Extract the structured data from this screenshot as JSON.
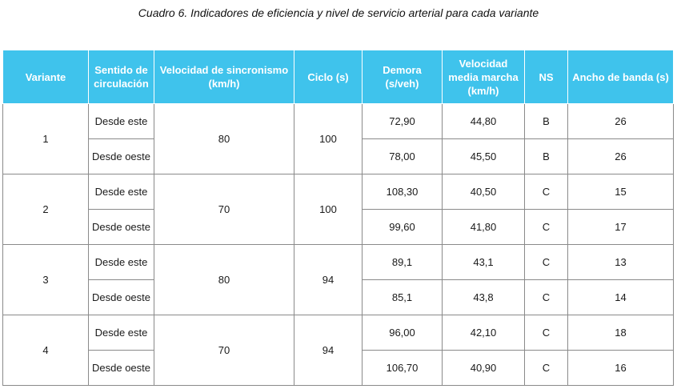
{
  "caption": "Cuadro 6. Indicadores de eficiencia y nivel de servicio arterial para cada variante",
  "colors": {
    "header_bg": "#3fc3ec",
    "header_text": "#ffffff",
    "border": "#8a8a8a"
  },
  "headers": {
    "variante": "Variante",
    "sentido": "Sentido de circulación",
    "velocidad_sincronismo": "Velocidad de sincronismo (km/h)",
    "ciclo": "Ciclo (s)",
    "demora": "Demora (s/veh)",
    "velocidad_media": "Velocidad media marcha (km/h)",
    "ns": "NS",
    "ancho_banda": "Ancho de banda (s)"
  },
  "rows": [
    {
      "variante": "1",
      "velocidad": "80",
      "ciclo": "100",
      "directions": [
        {
          "sentido": "Desde este",
          "demora": "72,90",
          "velocidad_media": "44,80",
          "ns": "B",
          "ancho_banda": "26"
        },
        {
          "sentido": "Desde oeste",
          "demora": "78,00",
          "velocidad_media": "45,50",
          "ns": "B",
          "ancho_banda": "26"
        }
      ]
    },
    {
      "variante": "2",
      "velocidad": "70",
      "ciclo": "100",
      "directions": [
        {
          "sentido": "Desde este",
          "demora": "108,30",
          "velocidad_media": "40,50",
          "ns": "C",
          "ancho_banda": "15"
        },
        {
          "sentido": "Desde oeste",
          "demora": "99,60",
          "velocidad_media": "41,80",
          "ns": "C",
          "ancho_banda": "17"
        }
      ]
    },
    {
      "variante": "3",
      "velocidad": "80",
      "ciclo": "94",
      "directions": [
        {
          "sentido": "Desde este",
          "demora": "89,1",
          "velocidad_media": "43,1",
          "ns": "C",
          "ancho_banda": "13"
        },
        {
          "sentido": "Desde oeste",
          "demora": "85,1",
          "velocidad_media": "43,8",
          "ns": "C",
          "ancho_banda": "14"
        }
      ]
    },
    {
      "variante": "4",
      "velocidad": "70",
      "ciclo": "94",
      "directions": [
        {
          "sentido": "Desde este",
          "demora": "96,00",
          "velocidad_media": "42,10",
          "ns": "C",
          "ancho_banda": "18"
        },
        {
          "sentido": "Desde oeste",
          "demora": "106,70",
          "velocidad_media": "40,90",
          "ns": "C",
          "ancho_banda": "16"
        }
      ]
    }
  ]
}
